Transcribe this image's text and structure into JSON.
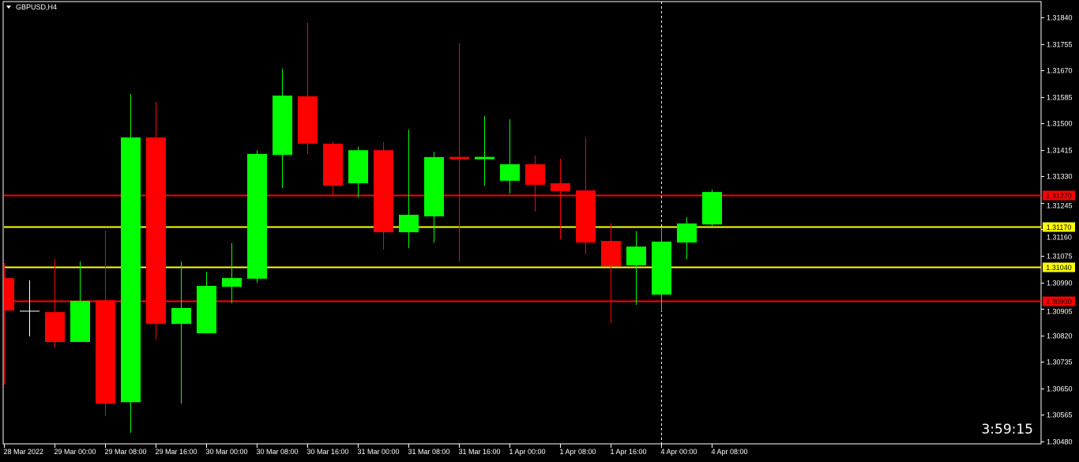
{
  "window": {
    "title": "GBPUSD,H4",
    "menu_icon": "triangle-down-icon"
  },
  "timer": "3:59:15",
  "colors": {
    "background": "#000000",
    "bull": "#00ff00",
    "bear": "#ff0000",
    "doji": "#ffffff",
    "axis": "#ffffff",
    "grid_text": "#ffffff"
  },
  "chart_data": {
    "type": "candlestick",
    "symbol": "GBPUSD",
    "timeframe": "H4",
    "ylim": [
      1.3048,
      1.3184
    ],
    "y_ticks": [
      "1.31840",
      "1.31755",
      "1.31670",
      "1.31585",
      "1.31500",
      "1.31415",
      "1.31330",
      "1.31245",
      "1.31160",
      "1.31075",
      "1.30990",
      "1.30905",
      "1.30820",
      "1.30735",
      "1.30650",
      "1.30565",
      "1.30480"
    ],
    "x_ticks": [
      "28 Mar 2022",
      "29 Mar 00:00",
      "29 Mar 08:00",
      "29 Mar 16:00",
      "30 Mar 00:00",
      "30 Mar 08:00",
      "30 Mar 16:00",
      "31 Mar 00:00",
      "31 Mar 08:00",
      "31 Mar 16:00",
      "1 Apr 00:00",
      "1 Apr 08:00",
      "1 Apr 16:00",
      "4 Apr 00:00",
      "4 Apr 08:00"
    ],
    "candles": [
      {
        "o": 1.31004,
        "h": 1.31052,
        "l": 1.30662,
        "c": 1.309
      },
      {
        "o": 1.30898,
        "h": 1.30997,
        "l": 1.30817,
        "c": 1.30898
      },
      {
        "o": 1.30895,
        "h": 1.31065,
        "l": 1.30781,
        "c": 1.30799
      },
      {
        "o": 1.30799,
        "h": 1.31057,
        "l": 1.30799,
        "c": 1.30931
      },
      {
        "o": 1.30933,
        "h": 1.31156,
        "l": 1.30561,
        "c": 1.30601
      },
      {
        "o": 1.30606,
        "h": 1.31594,
        "l": 1.30508,
        "c": 1.31455
      },
      {
        "o": 1.31455,
        "h": 1.31569,
        "l": 1.30807,
        "c": 1.30857
      },
      {
        "o": 1.30857,
        "h": 1.31057,
        "l": 1.30601,
        "c": 1.30908
      },
      {
        "o": 1.30827,
        "h": 1.31024,
        "l": 1.30827,
        "c": 1.30979
      },
      {
        "o": 1.30976,
        "h": 1.31116,
        "l": 1.30923,
        "c": 1.31004
      },
      {
        "o": 1.31002,
        "h": 1.31414,
        "l": 1.30989,
        "c": 1.31402
      },
      {
        "o": 1.31399,
        "h": 1.31675,
        "l": 1.31293,
        "c": 1.31589
      },
      {
        "o": 1.31587,
        "h": 1.31822,
        "l": 1.31402,
        "c": 1.31435
      },
      {
        "o": 1.31435,
        "h": 1.31442,
        "l": 1.31265,
        "c": 1.313
      },
      {
        "o": 1.31308,
        "h": 1.31425,
        "l": 1.31262,
        "c": 1.31414
      },
      {
        "o": 1.31414,
        "h": 1.3144,
        "l": 1.31095,
        "c": 1.31151
      },
      {
        "o": 1.31151,
        "h": 1.3148,
        "l": 1.311,
        "c": 1.31207
      },
      {
        "o": 1.31202,
        "h": 1.31409,
        "l": 1.31118,
        "c": 1.31392
      },
      {
        "o": 1.31389,
        "h": 1.31756,
        "l": 1.31057,
        "c": 1.31384
      },
      {
        "o": 1.31384,
        "h": 1.31523,
        "l": 1.313,
        "c": 1.31389
      },
      {
        "o": 1.31316,
        "h": 1.31513,
        "l": 1.31275,
        "c": 1.31369
      },
      {
        "o": 1.31369,
        "h": 1.31397,
        "l": 1.31217,
        "c": 1.31303
      },
      {
        "o": 1.31308,
        "h": 1.31387,
        "l": 1.31128,
        "c": 1.31283
      },
      {
        "o": 1.31285,
        "h": 1.31455,
        "l": 1.3108,
        "c": 1.31118
      },
      {
        "o": 1.31123,
        "h": 1.31179,
        "l": 1.3086,
        "c": 1.31042
      },
      {
        "o": 1.31045,
        "h": 1.31154,
        "l": 1.30918,
        "c": 1.31105
      },
      {
        "o": 1.30951,
        "h": 1.31164,
        "l": 1.30898,
        "c": 1.31121
      },
      {
        "o": 1.31118,
        "h": 1.31199,
        "l": 1.31065,
        "c": 1.31179
      },
      {
        "o": 1.31176,
        "h": 1.31288,
        "l": 1.31171,
        "c": 1.3128
      }
    ],
    "horizontal_lines": [
      {
        "price": "1.31270",
        "color": "#ff0000",
        "label_text_color": "#000000"
      },
      {
        "price": "1.31170",
        "color": "#ffff00",
        "label_text_color": "#000000"
      },
      {
        "price": "1.31040",
        "color": "#ffff00",
        "label_text_color": "#000000"
      },
      {
        "price": "1.30930",
        "color": "#ff0000",
        "label_text_color": "#000000"
      }
    ],
    "vertical_line": {
      "candle_index": 26,
      "style": "dashed",
      "color": "#ffffff"
    },
    "grid": false
  }
}
